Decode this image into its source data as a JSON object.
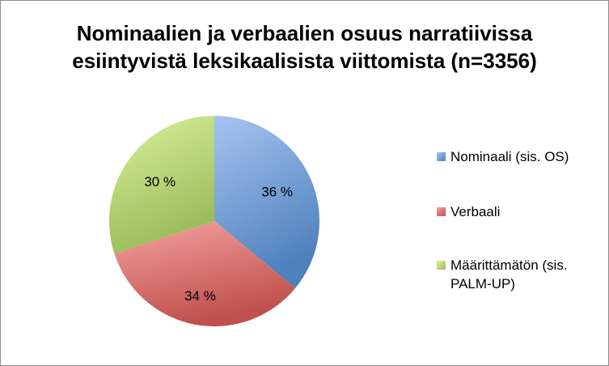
{
  "chart_data": {
    "type": "pie",
    "title": [
      "Nominaalien ja verbaalien osuus narratiivissa",
      "esiintyvistä leksikaalisista viittomista (n=3356)"
    ],
    "categories": [
      "Nominaali (sis. OS)",
      "Verbaali",
      "Määrittämätön (sis.\nPALM-UP)"
    ],
    "values": [
      36,
      34,
      30
    ],
    "labels": [
      "36 %",
      "34 %",
      "30 %"
    ],
    "colors": [
      "#4f81bd",
      "#c0504d",
      "#9bbb59"
    ],
    "light_colors": [
      "#a7c4f2",
      "#f5a3a0",
      "#d7f29e"
    ],
    "legend": "right"
  }
}
